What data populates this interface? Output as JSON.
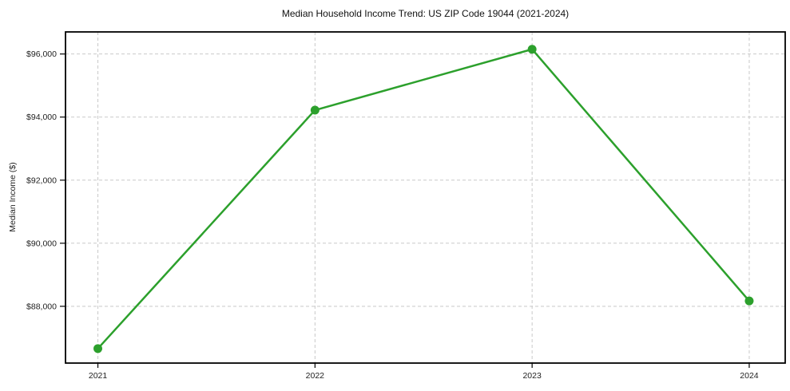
{
  "chart_data": {
    "type": "line",
    "title": "Median Household Income Trend: US ZIP Code 19044 (2021-2024)",
    "xlabel": "",
    "ylabel": "Median Income ($)",
    "categories": [
      "2021",
      "2022",
      "2023",
      "2024"
    ],
    "series": [
      {
        "name": "Median Household Income",
        "values": [
          86660,
          94220,
          96150,
          88170
        ]
      }
    ],
    "ylim": [
      86200,
      96700
    ],
    "yticks": {
      "values": [
        88000,
        90000,
        92000,
        94000,
        96000
      ],
      "labels": [
        "$88,000",
        "$90,000",
        "$92,000",
        "$94,000",
        "$96,000"
      ]
    },
    "xticks": {
      "labels": [
        "2021",
        "2022",
        "2023",
        "2024"
      ]
    },
    "grid": true,
    "grid_style": "dashed",
    "legend": "none",
    "marker": "circle",
    "colors": {
      "line": "#2ca02c",
      "marker": "#2ca02c",
      "grid": "#c9c9c9",
      "spine": "#000000",
      "title_text": "#111111",
      "tick_text": "#222222",
      "background": "#ffffff"
    }
  }
}
